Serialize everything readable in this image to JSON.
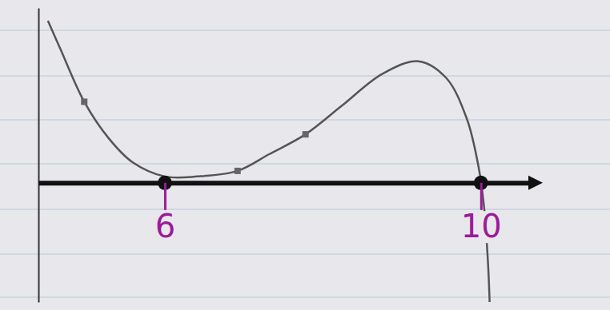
{
  "chart_data": {
    "type": "line",
    "xlim": [
      4.4,
      10.6
    ],
    "xticks": [
      6,
      10
    ],
    "ylim": [
      -1.5,
      2.2
    ],
    "yticks": [],
    "tick_labels": "x",
    "grid": false,
    "series": [
      {
        "type": "line",
        "color": "#555555",
        "line_style": "solid",
        "x": [
          4.52,
          4.68,
          4.98,
          5.29,
          5.59,
          6.0,
          6.41,
          6.92,
          7.32,
          7.78,
          8.24,
          8.75,
          9.21,
          9.56,
          9.82,
          9.97,
          10.04,
          10.09,
          10.11
        ],
        "values": [
          2.04,
          1.68,
          1.02,
          0.56,
          0.26,
          0.08,
          0.08,
          0.15,
          0.36,
          0.61,
          0.97,
          1.37,
          1.53,
          1.32,
          0.81,
          0.2,
          -0.31,
          -1.02,
          -1.5
        ]
      },
      {
        "type": "scatter",
        "color": "#666666",
        "marker": "square",
        "x": [
          4.98,
          6.92,
          7.78
        ],
        "values": [
          1.02,
          0.15,
          0.61
        ]
      },
      {
        "type": "scatter",
        "color": "#111111",
        "marker": "circle",
        "x": [
          6,
          10
        ],
        "values": [
          0,
          0
        ]
      }
    ]
  }
}
